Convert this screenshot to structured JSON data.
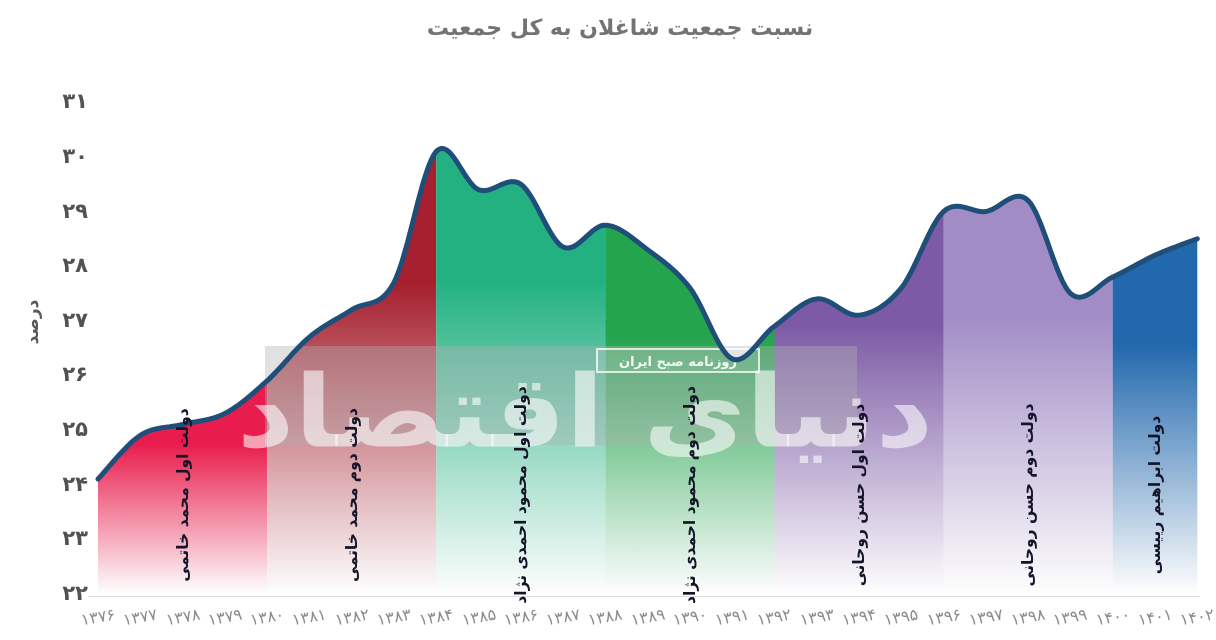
{
  "title": "نسبت جمعیت شاغلان به کل جمعیت",
  "y_axis": {
    "label": "درصد",
    "ticks": [
      "۳۱",
      "۳۰",
      "۲۹",
      "۲۸",
      "۲۷",
      "۲۶",
      "۲۵",
      "۲۴",
      "۲۳",
      "۲۲"
    ]
  },
  "x_axis": {
    "ticks": [
      "۱۳۷۶",
      "۱۳۷۷",
      "۱۳۷۸",
      "۱۳۷۹",
      "۱۳۸۰",
      "۱۳۸۱",
      "۱۳۸۲",
      "۱۳۸۳",
      "۱۳۸۴",
      "۱۳۸۵",
      "۱۳۸۶",
      "۱۳۸۷",
      "۱۳۸۸",
      "۱۳۸۹",
      "۱۳۹۰",
      "۱۳۹۱",
      "۱۳۹۲",
      "۱۳۹۳",
      "۱۳۹۴",
      "۱۳۹۵",
      "۱۳۹۶",
      "۱۳۹۷",
      "۱۳۹۸",
      "۱۳۹۹",
      "۱۴۰۰",
      "۱۴۰۱",
      "۱۴۰۲"
    ]
  },
  "watermark": {
    "main": "دنیای اقتصاد",
    "sub": "روزنامه صبح ایران"
  },
  "chart_data": {
    "type": "area",
    "title": "نسبت جمعیت شاغلان به کل جمعیت",
    "xlabel": "",
    "ylabel": "درصد",
    "ylim": [
      22,
      31
    ],
    "xlim": [
      1376,
      1402
    ],
    "grid": false,
    "line_color": "#1f4e79",
    "x": [
      1376,
      1377,
      1378,
      1379,
      1380,
      1381,
      1382,
      1383,
      1384,
      1385,
      1386,
      1387,
      1388,
      1389,
      1390,
      1391,
      1392,
      1393,
      1394,
      1395,
      1396,
      1397,
      1398,
      1399,
      1400,
      1401,
      1402
    ],
    "values": [
      24.1,
      24.9,
      25.1,
      25.3,
      25.9,
      26.7,
      27.2,
      27.7,
      30.1,
      29.4,
      29.5,
      28.35,
      28.75,
      28.3,
      27.6,
      26.3,
      26.9,
      27.4,
      27.1,
      27.6,
      29.0,
      29.0,
      29.2,
      27.5,
      27.8,
      28.2,
      28.5
    ],
    "segments": [
      {
        "label": "دولت اول محمد خاتمی",
        "from": 1376,
        "to": 1380,
        "color": "#e91d4d"
      },
      {
        "label": "دولت دوم محمد خاتمی",
        "from": 1380,
        "to": 1384,
        "color": "#a6202f"
      },
      {
        "label": "دولت اول محمود احمدی نژاد",
        "from": 1384,
        "to": 1388,
        "color": "#23b182"
      },
      {
        "label": "دولت دوم محمود احمدی نژاد",
        "from": 1388,
        "to": 1392,
        "color": "#23a44d"
      },
      {
        "label": "دولت اول حسن روحانی",
        "from": 1392,
        "to": 1396,
        "color": "#7c5aa5"
      },
      {
        "label": "دولت دوم حسن روحانی",
        "from": 1396,
        "to": 1400,
        "color": "#a18cc6"
      },
      {
        "label": "دولت ابراهیم رییسی",
        "from": 1400,
        "to": 1402,
        "color": "#2268ac"
      }
    ]
  }
}
